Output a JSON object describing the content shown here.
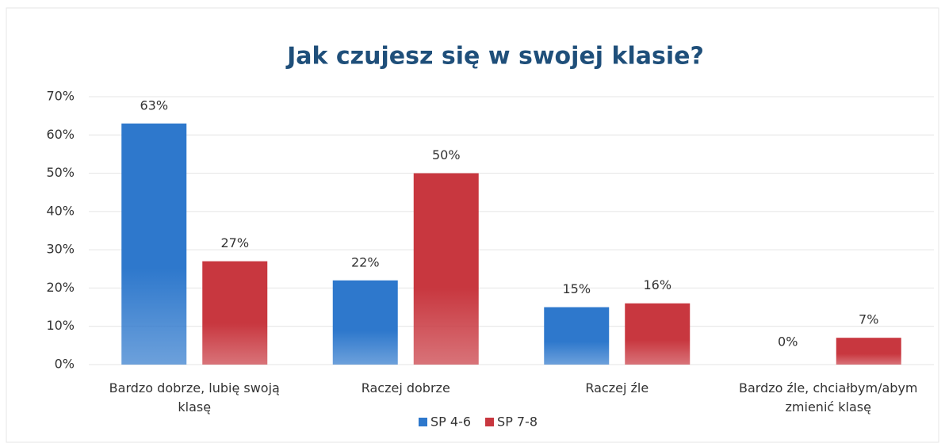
{
  "chart_data": {
    "type": "bar",
    "title": "Jak czujesz się w swojej klasie?",
    "categories": [
      "Bardzo dobrze, lubię swoją klasę",
      "Raczej dobrze",
      "Raczej źle",
      "Bardzo źle, chciałbym/abym zmienić klasę"
    ],
    "series": [
      {
        "name": "SP 4-6",
        "color": "#2e78cc",
        "values": [
          63,
          22,
          15,
          0
        ],
        "value_labels": [
          "63%",
          "22%",
          "15%",
          "0%"
        ]
      },
      {
        "name": "SP 7-8",
        "color": "#c8373f",
        "values": [
          27,
          50,
          16,
          7
        ],
        "value_labels": [
          "27%",
          "50%",
          "16%",
          "7%"
        ]
      }
    ],
    "ylim": [
      0,
      70
    ],
    "yticks": [
      {
        "value": 0,
        "label": "0%"
      },
      {
        "value": 10,
        "label": "10%"
      },
      {
        "value": 20,
        "label": "20%"
      },
      {
        "value": 30,
        "label": "30%"
      },
      {
        "value": 40,
        "label": "40%"
      },
      {
        "value": 50,
        "label": "50%"
      },
      {
        "value": 60,
        "label": "60%"
      },
      {
        "value": 70,
        "label": "70%"
      }
    ],
    "grid": true,
    "legend": "bottom"
  }
}
